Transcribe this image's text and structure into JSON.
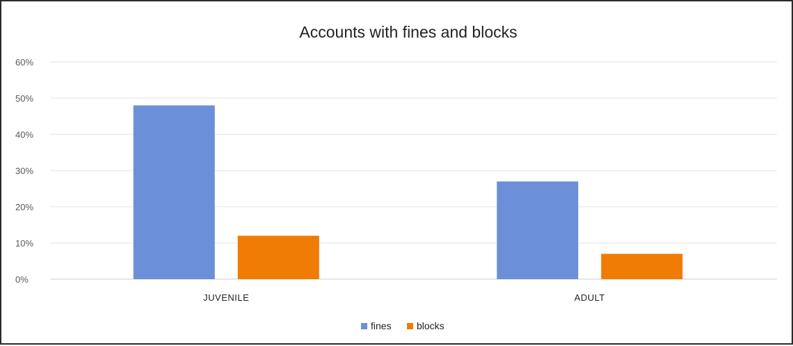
{
  "chart_data": {
    "type": "bar",
    "title": "Accounts with fines and blocks",
    "categories": [
      "JUVENILE",
      "ADULT"
    ],
    "series": [
      {
        "name": "fines",
        "color": "#6b8fd9",
        "values": [
          48,
          27
        ]
      },
      {
        "name": "blocks",
        "color": "#f07b05",
        "values": [
          12,
          7
        ]
      }
    ],
    "y_ticks": [
      "0%",
      "10%",
      "20%",
      "30%",
      "40%",
      "50%",
      "60%"
    ],
    "ylim": [
      0,
      60
    ],
    "y_unit": "%",
    "grid": true,
    "legend_position": "bottom"
  }
}
